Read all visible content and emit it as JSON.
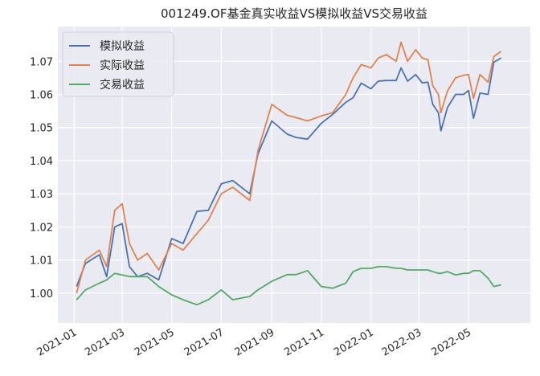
{
  "chart_data": {
    "type": "line",
    "title": "001249.OF基金真实收益VS模拟收益VS交易收益",
    "xlabel": "",
    "ylabel": "",
    "xlim": [
      "2020-12-12",
      "2022-07-16"
    ],
    "ylim": [
      0.991,
      1.0805
    ],
    "grid": true,
    "legend_position": "top-left",
    "yticks": [
      "1.00",
      "1.01",
      "1.02",
      "1.03",
      "1.04",
      "1.05",
      "1.06",
      "1.07"
    ],
    "xticks": [
      "2021-01",
      "2021-03",
      "2021-05",
      "2021-07",
      "2021-09",
      "2021-11",
      "2022-01",
      "2022-03",
      "2022-05"
    ],
    "x": [
      "2021-01-04",
      "2021-01-15",
      "2021-02-01",
      "2021-02-10",
      "2021-02-20",
      "2021-03-01",
      "2021-03-10",
      "2021-03-20",
      "2021-04-01",
      "2021-04-15",
      "2021-05-01",
      "2021-05-15",
      "2021-06-01",
      "2021-06-15",
      "2021-07-01",
      "2021-07-15",
      "2021-08-05",
      "2021-08-15",
      "2021-09-01",
      "2021-09-20",
      "2021-10-01",
      "2021-10-15",
      "2021-11-01",
      "2021-11-15",
      "2021-12-01",
      "2021-12-10",
      "2021-12-20",
      "2022-01-01",
      "2022-01-10",
      "2022-01-20",
      "2022-02-01",
      "2022-02-07",
      "2022-02-15",
      "2022-02-25",
      "2022-03-05",
      "2022-03-12",
      "2022-03-18",
      "2022-03-25",
      "2022-03-28",
      "2022-04-05",
      "2022-04-15",
      "2022-04-25",
      "2022-05-01",
      "2022-05-07",
      "2022-05-15",
      "2022-05-25",
      "2022-06-01",
      "2022-06-10"
    ],
    "series": [
      {
        "name": "模拟收益",
        "color": "#4c72b0",
        "values": [
          1.002,
          1.009,
          1.0116,
          1.005,
          1.02,
          1.021,
          1.008,
          1.005,
          1.006,
          1.004,
          1.0165,
          1.015,
          1.0247,
          1.025,
          1.033,
          1.034,
          1.03,
          1.042,
          1.052,
          1.048,
          1.047,
          1.0465,
          1.0513,
          1.054,
          1.0576,
          1.059,
          1.0634,
          1.0617,
          1.064,
          1.0642,
          1.0642,
          1.068,
          1.064,
          1.066,
          1.0635,
          1.0637,
          1.057,
          1.0545,
          1.049,
          1.056,
          1.06,
          1.06,
          1.0612,
          1.0528,
          1.0604,
          1.06,
          1.0697,
          1.071
        ]
      },
      {
        "name": "实际收益",
        "color": "#dd8452",
        "values": [
          1.0,
          1.01,
          1.013,
          1.008,
          1.025,
          1.027,
          1.015,
          1.01,
          1.012,
          1.007,
          1.015,
          1.013,
          1.018,
          1.022,
          1.03,
          1.032,
          1.028,
          1.043,
          1.057,
          1.0537,
          1.053,
          1.052,
          1.0535,
          1.0545,
          1.06,
          1.065,
          1.069,
          1.068,
          1.071,
          1.072,
          1.07,
          1.0758,
          1.07,
          1.0735,
          1.071,
          1.0705,
          1.0626,
          1.06,
          1.0545,
          1.061,
          1.065,
          1.0658,
          1.066,
          1.0588,
          1.066,
          1.0637,
          1.0714,
          1.073
        ]
      },
      {
        "name": "交易收益",
        "color": "#55a868",
        "values": [
          0.998,
          1.001,
          1.003,
          1.004,
          1.006,
          1.0055,
          1.005,
          1.005,
          1.005,
          1.002,
          0.9995,
          0.998,
          0.9965,
          0.998,
          1.001,
          0.998,
          0.999,
          1.001,
          1.0036,
          1.0056,
          1.0056,
          1.0068,
          1.002,
          1.0015,
          1.003,
          1.0065,
          1.0075,
          1.0075,
          1.008,
          1.008,
          1.0075,
          1.0075,
          1.007,
          1.007,
          1.007,
          1.007,
          1.0065,
          1.006,
          1.006,
          1.0065,
          1.0055,
          1.006,
          1.006,
          1.0068,
          1.0068,
          1.0045,
          1.002,
          1.0025
        ]
      }
    ]
  }
}
